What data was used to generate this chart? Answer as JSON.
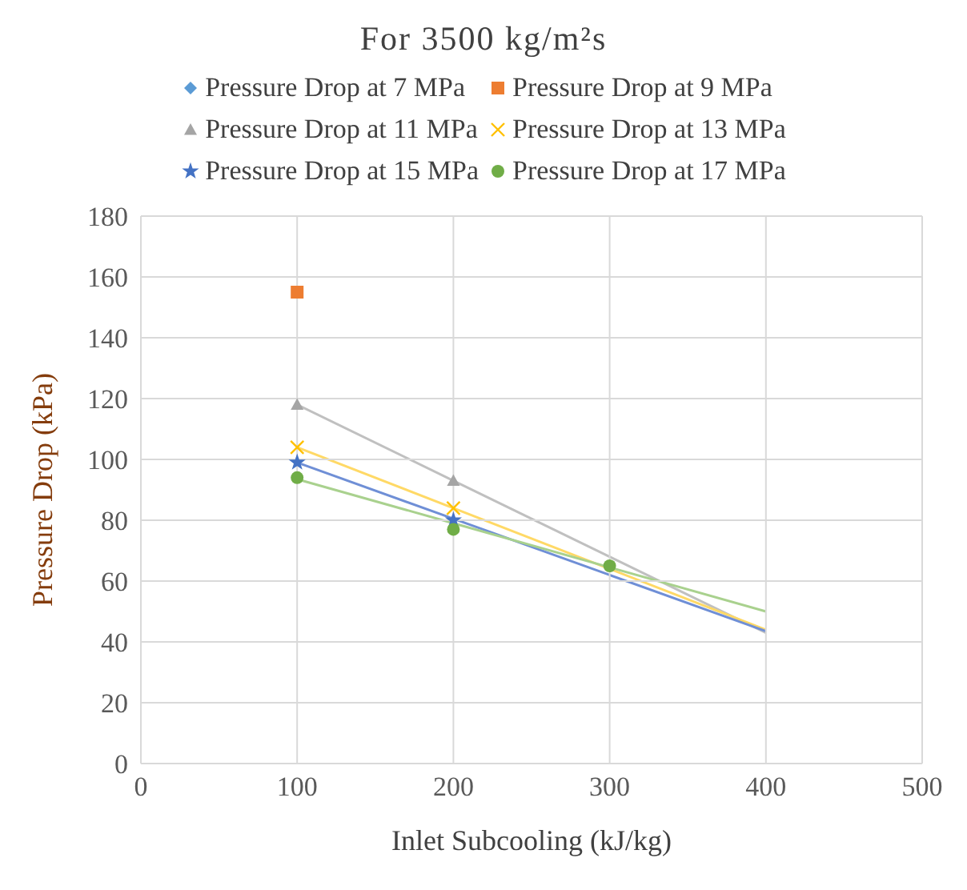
{
  "chart_data": {
    "type": "scatter",
    "title": "For 3500 kg/m²s",
    "xlabel": "Inlet Subcooling (kJ/kg)",
    "ylabel": "Pressure Drop (kPa)",
    "x": [
      100,
      200,
      300,
      400
    ],
    "series": [
      {
        "name": "Pressure Drop at 7 MPa",
        "color": "#5b9bd5",
        "marker": "diamond",
        "values": [
          null,
          null,
          null,
          null
        ]
      },
      {
        "name": "Pressure Drop at 9 MPa",
        "color": "#ed7d31",
        "marker": "square",
        "values": [
          155,
          null,
          null,
          null
        ]
      },
      {
        "name": "Pressure Drop at 11 MPa",
        "color": "#a5a5a5",
        "marker": "triangle",
        "values": [
          118,
          93,
          null,
          null
        ]
      },
      {
        "name": "Pressure Drop at 13 MPa",
        "color": "#ffc000",
        "marker": "cross",
        "values": [
          104,
          84,
          null,
          null
        ]
      },
      {
        "name": "Pressure Drop at 15 MPa",
        "color": "#4472c4",
        "marker": "star",
        "values": [
          99,
          80,
          null,
          null
        ]
      },
      {
        "name": "Pressure Drop at 17 MPa",
        "color": "#70ad47",
        "marker": "circle",
        "values": [
          94,
          77,
          65,
          null
        ]
      },
      {
        "type": "line",
        "color": "#c0c0c0",
        "values": [
          118,
          93,
          68,
          43
        ]
      },
      {
        "type": "line",
        "color": "#ffd966",
        "values": [
          104,
          84,
          64,
          44
        ]
      },
      {
        "type": "line",
        "color": "#6f8fd6",
        "values": [
          99,
          80.5,
          62,
          43.5
        ]
      },
      {
        "type": "line",
        "color": "#a9d18e",
        "values": [
          93.5,
          79,
          64.5,
          50
        ]
      }
    ],
    "xlim": [
      0,
      500
    ],
    "xticks": [
      0,
      100,
      200,
      300,
      400,
      500
    ],
    "ylim": [
      0,
      180
    ],
    "yticks": [
      0,
      20,
      40,
      60,
      80,
      100,
      120,
      140,
      160,
      180
    ],
    "grid": true,
    "legend": "top"
  }
}
